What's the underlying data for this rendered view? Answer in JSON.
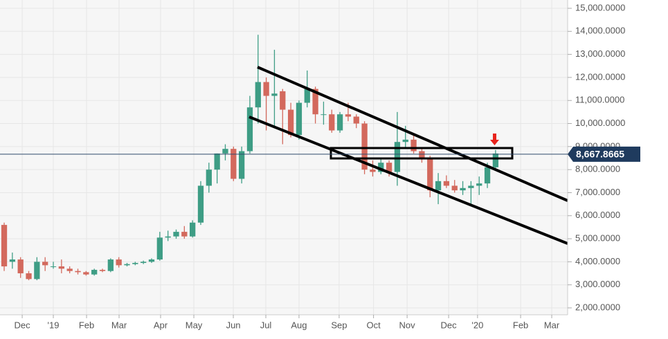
{
  "chart_data": {
    "type": "candlestick",
    "x": [
      0,
      1,
      2,
      3,
      4,
      5,
      6,
      7,
      8,
      9,
      10,
      11,
      12,
      13,
      14,
      15,
      16,
      17,
      18,
      19,
      20,
      21,
      22,
      23,
      24,
      25,
      26,
      27,
      28,
      29,
      30,
      31,
      32,
      33,
      34,
      35,
      36,
      37,
      38,
      39,
      40,
      41,
      42,
      43,
      44,
      45,
      46,
      47,
      48,
      49,
      50,
      51,
      52,
      53,
      54,
      55,
      56,
      57,
      58,
      59,
      60
    ],
    "open": [
      5600,
      4000,
      4100,
      3500,
      3250,
      4000,
      3800,
      3800,
      3700,
      3600,
      3550,
      3450,
      3650,
      3600,
      4100,
      3850,
      3900,
      3950,
      4000,
      4100,
      5050,
      5100,
      5300,
      5100,
      5700,
      7300,
      8000,
      8700,
      8900,
      7600,
      8800,
      10700,
      11800,
      11200,
      11400,
      10600,
      9500,
      10900,
      11500,
      10400,
      10400,
      9700,
      10400,
      10300,
      10000,
      8000,
      7900,
      8300,
      7900,
      9200,
      9300,
      8800,
      8500,
      7100,
      7500,
      7300,
      7100,
      7200,
      7300,
      7400,
      8100
    ],
    "high": [
      5700,
      4400,
      4200,
      3600,
      4200,
      4200,
      4000,
      4100,
      3800,
      3700,
      3600,
      3700,
      3700,
      4150,
      4200,
      3950,
      4000,
      4050,
      4150,
      5300,
      5350,
      5400,
      5550,
      5800,
      7500,
      8300,
      8700,
      9100,
      9000,
      9000,
      11200,
      13850,
      12000,
      13200,
      11500,
      10900,
      11000,
      12300,
      11600,
      10950,
      10600,
      10500,
      10900,
      10400,
      10100,
      8400,
      8500,
      8400,
      10500,
      9900,
      9500,
      8900,
      8600,
      7850,
      7750,
      7550,
      7500,
      7500,
      7700,
      8300,
      8850
    ],
    "low": [
      3600,
      3700,
      3300,
      3200,
      3200,
      3600,
      3700,
      3500,
      3500,
      3450,
      3400,
      3400,
      3550,
      3550,
      3750,
      3800,
      3850,
      3900,
      3950,
      4050,
      4900,
      5000,
      5000,
      5050,
      5600,
      7000,
      7400,
      8400,
      7500,
      7400,
      8700,
      10000,
      9700,
      9900,
      9100,
      9400,
      9300,
      10700,
      10000,
      9950,
      9600,
      9600,
      10100,
      9800,
      7800,
      7700,
      7800,
      7700,
      7300,
      8900,
      8700,
      8300,
      6800,
      6500,
      7200,
      7000,
      6900,
      6400,
      6900,
      7200,
      8000
    ],
    "close": [
      3800,
      4100,
      3500,
      3250,
      4000,
      3850,
      3800,
      3700,
      3600,
      3550,
      3450,
      3650,
      3600,
      4100,
      3850,
      3900,
      3950,
      4000,
      4100,
      5050,
      5100,
      5300,
      5100,
      5700,
      7300,
      8000,
      8700,
      8900,
      7600,
      8800,
      10700,
      11800,
      11200,
      11300,
      10600,
      9500,
      10900,
      11500,
      10400,
      10400,
      9700,
      10400,
      10300,
      10000,
      8000,
      7900,
      8300,
      7900,
      9200,
      9300,
      8800,
      8500,
      7100,
      7500,
      7300,
      7100,
      7200,
      7300,
      7400,
      8100,
      8700
    ],
    "up_color": "#3e9d85",
    "down_color": "#d3695d",
    "xlim": [
      -0.51,
      68.8
    ],
    "xticks": [
      {
        "value": 2.2,
        "label": "Dec"
      },
      {
        "value": 6.0,
        "label": "'19"
      },
      {
        "value": 10.06,
        "label": "Feb"
      },
      {
        "value": 14.03,
        "label": "Mar"
      },
      {
        "value": 19.1,
        "label": "Apr"
      },
      {
        "value": 23.16,
        "label": "May"
      },
      {
        "value": 27.98,
        "label": "Jun"
      },
      {
        "value": 31.95,
        "label": "Jul"
      },
      {
        "value": 36.0,
        "label": "Aug"
      },
      {
        "value": 40.9,
        "label": "Sep"
      },
      {
        "value": 45.1,
        "label": "Oct"
      },
      {
        "value": 49.2,
        "label": "Nov"
      },
      {
        "value": 54.27,
        "label": "Dec"
      },
      {
        "value": 57.8,
        "label": "'20"
      },
      {
        "value": 63.06,
        "label": "Feb"
      },
      {
        "value": 66.86,
        "label": "Mar"
      }
    ],
    "ylim": [
      1700,
      15360
    ],
    "yticks": [
      {
        "value": 2000,
        "label": "2,000.0000"
      },
      {
        "value": 3000,
        "label": "3,000.0000"
      },
      {
        "value": 4000,
        "label": "4,000.0000"
      },
      {
        "value": 5000,
        "label": "5,000.0000"
      },
      {
        "value": 6000,
        "label": "6,000.0000"
      },
      {
        "value": 7000,
        "label": "7,000.0000"
      },
      {
        "value": 8000,
        "label": "8,000.0000"
      },
      {
        "value": 9000,
        "label": "9,000.0000"
      },
      {
        "value": 10000,
        "label": "10,000.0000"
      },
      {
        "value": 11000,
        "label": "11,000.0000"
      },
      {
        "value": 12000,
        "label": "12,000.0000"
      },
      {
        "value": 13000,
        "label": "13,000.0000"
      },
      {
        "value": 14000,
        "label": "14,000.0000"
      },
      {
        "value": 15000,
        "label": "15,000.0000"
      }
    ],
    "current_price": {
      "value": 8667.8665,
      "label": "8,667.8665"
    },
    "grid": true
  }
}
